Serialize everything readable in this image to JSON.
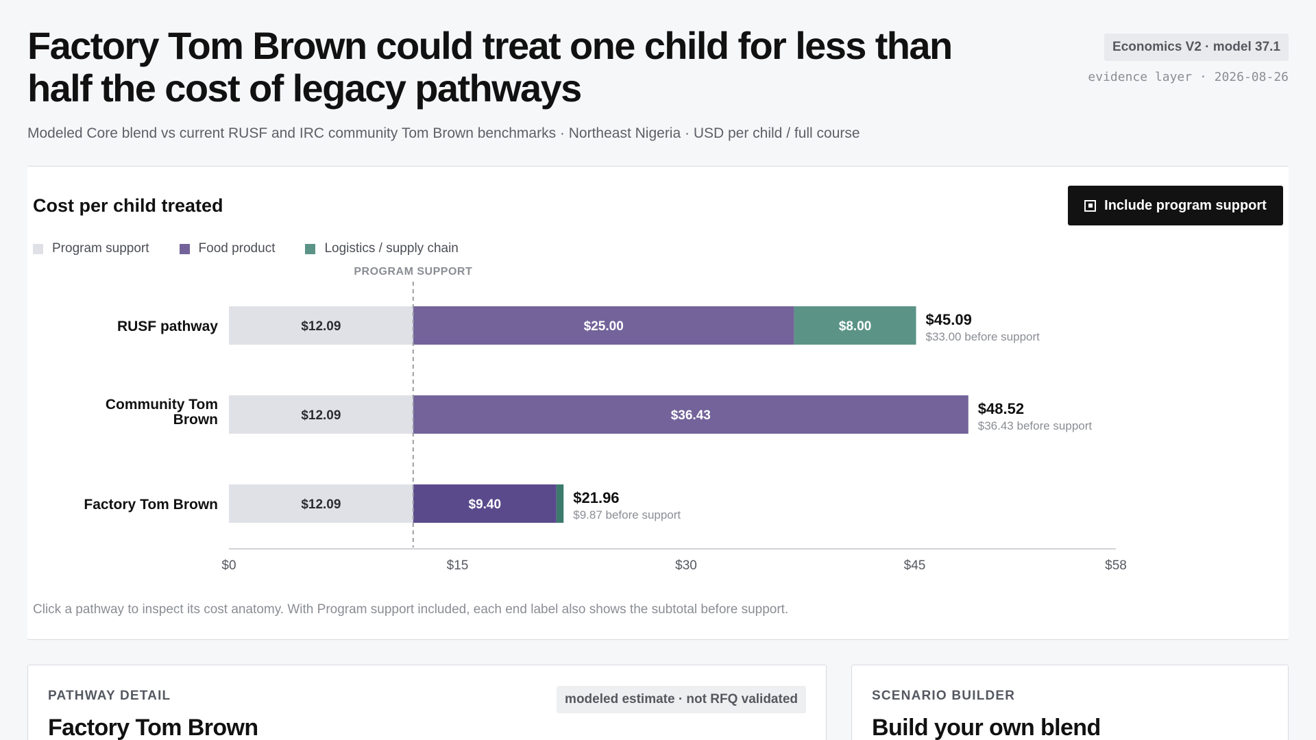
{
  "header": {
    "title": "Factory Tom Brown could treat one child for less than half the cost of legacy pathways",
    "subtitle": "Modeled Core blend vs current RUSF and IRC community Tom Brown benchmarks · Northeast Nigeria · USD per child / full course",
    "model_badge": "Economics V2 · model 37.1",
    "evidence": "evidence layer · 2026-08-26"
  },
  "chart_card": {
    "heading": "Cost per child treated",
    "toggle_label": "Include program support",
    "footnote": "Click a pathway to inspect its cost anatomy. With Program support included, each end label also shows the subtotal before support."
  },
  "chart_data": {
    "type": "bar",
    "orientation": "horizontal",
    "stacked": true,
    "title": "Cost per child treated",
    "categories": [
      "RUSF pathway",
      "Community Tom Brown",
      "Factory Tom Brown"
    ],
    "series": [
      {
        "name": "Program support",
        "color": "#dfe1e6",
        "values": [
          12.09,
          12.09,
          12.09
        ]
      },
      {
        "name": "Food product",
        "color": "#73639a",
        "values": [
          25.0,
          36.43,
          9.4
        ]
      },
      {
        "name": "Logistics / supply chain",
        "color": "#5b9487",
        "values": [
          8.0,
          0,
          0.47
        ]
      }
    ],
    "food_colors": [
      "#73639a",
      "#73639a",
      "#5a4a8c"
    ],
    "logistics_color_small": "#3c7a6d",
    "segment_labels": [
      [
        "$12.09",
        "$25.00",
        "$8.00"
      ],
      [
        "$12.09",
        "$36.43",
        ""
      ],
      [
        "$12.09",
        "$9.40",
        ""
      ]
    ],
    "totals": [
      "$45.09",
      "$48.52",
      "$21.96"
    ],
    "subtotals": [
      "$33.00 before support",
      "$36.43 before support",
      "$9.87 before support"
    ],
    "reference_line": {
      "value": 12.09,
      "label": "PROGRAM SUPPORT"
    },
    "xlim": [
      0,
      58.2
    ],
    "xticks": [
      0,
      15,
      30,
      45,
      58
    ],
    "xtick_labels": [
      "$0",
      "$15",
      "$30",
      "$45",
      "$58"
    ],
    "grid": false,
    "legend_position": "top-left"
  },
  "detail": {
    "kicker": "PATHWAY DETAIL",
    "title": "Factory Tom Brown",
    "badge": "modeled estimate · not RFQ validated"
  },
  "scenario": {
    "kicker": "SCENARIO BUILDER",
    "title": "Build your own blend"
  }
}
